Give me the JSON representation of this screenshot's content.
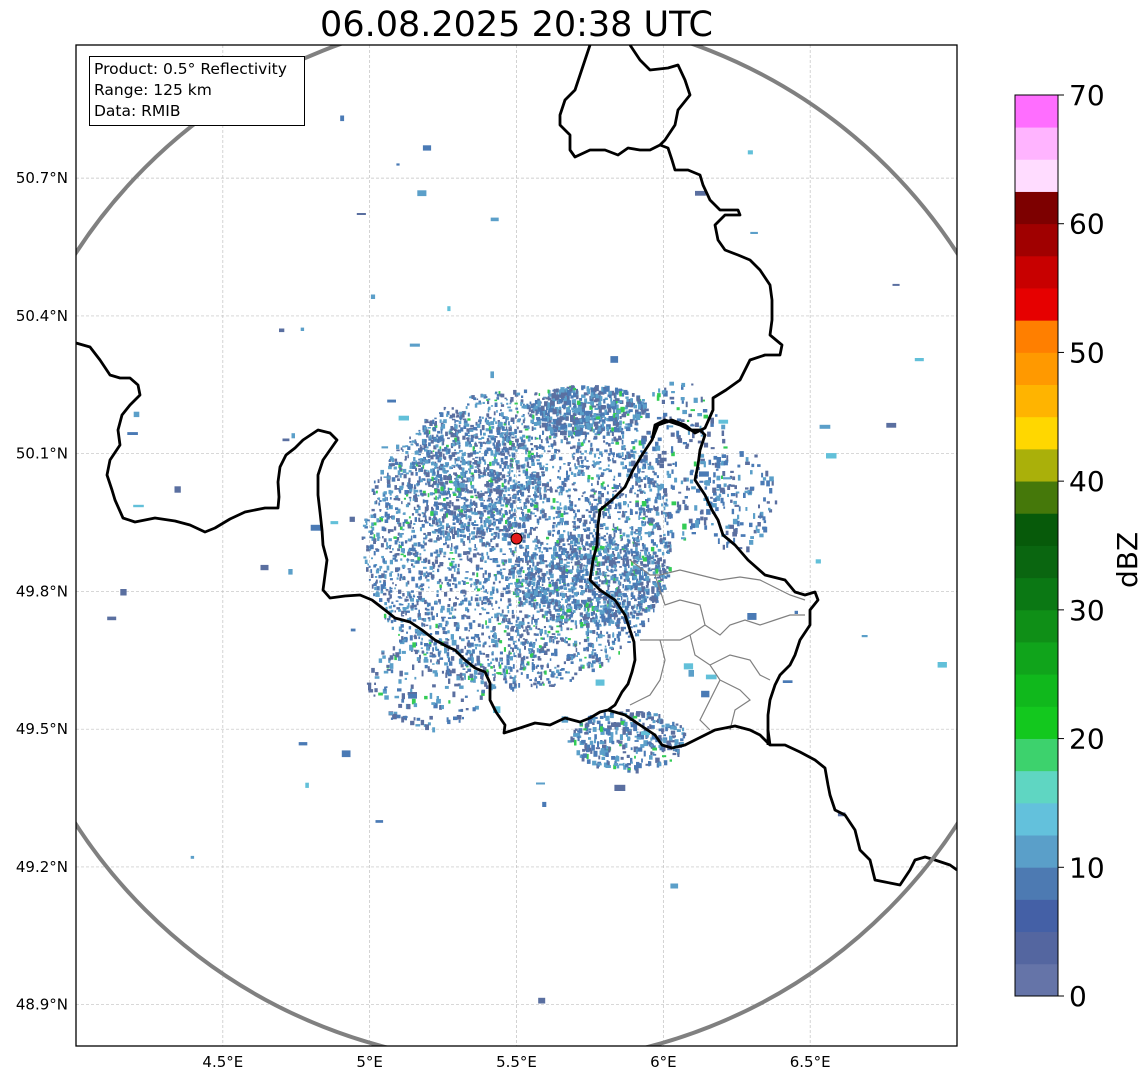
{
  "title": "06.08.2025 20:38 UTC",
  "info_box": {
    "product": "Product: 0.5° Reflectivity",
    "range": "Range: 125 km",
    "data": "Data: RMIB"
  },
  "map": {
    "lon_range": [
      4.0,
      7.0
    ],
    "lat_range": [
      48.81,
      50.99
    ],
    "lon_ticks": [
      {
        "value": 4.5,
        "label": "4.5°E"
      },
      {
        "value": 5.0,
        "label": "5°E"
      },
      {
        "value": 5.5,
        "label": "5.5°E"
      },
      {
        "value": 6.0,
        "label": "6°E"
      },
      {
        "value": 6.5,
        "label": "6.5°E"
      }
    ],
    "lat_ticks": [
      {
        "value": 48.9,
        "label": "48.9°N"
      },
      {
        "value": 49.2,
        "label": "49.2°N"
      },
      {
        "value": 49.5,
        "label": "49.5°N"
      },
      {
        "value": 49.8,
        "label": "49.8°N"
      },
      {
        "value": 50.1,
        "label": "50.1°N"
      },
      {
        "value": 50.4,
        "label": "50.4°N"
      },
      {
        "value": 50.7,
        "label": "50.7°N"
      }
    ],
    "grid": true,
    "radar_site": {
      "lon": 5.5,
      "lat": 49.915,
      "color": "#e31a1c"
    },
    "range_km": 125,
    "range_ring_color": "#808080",
    "border_color": "#000000",
    "admin_border_color": "#808080",
    "echo_colors": [
      "#5a6fa0",
      "#4a7ab5",
      "#5b9fc9",
      "#62c0d9",
      "#33cc55"
    ]
  },
  "colorbar": {
    "unit": "dBZ",
    "min": 0,
    "max": 70,
    "step": 2.5,
    "ticks": [
      0,
      10,
      20,
      30,
      40,
      50,
      60,
      70
    ],
    "colors": [
      "#6574a8",
      "#5466a0",
      "#4460a6",
      "#4d7ab2",
      "#5a9fc9",
      "#63c1dc",
      "#5fd6c2",
      "#3dd26d",
      "#13c81e",
      "#10b81c",
      "#10a41b",
      "#0f8f17",
      "#0b7814",
      "#0a6610",
      "#075a0a",
      "#45780a",
      "#aab00a",
      "#ffd700",
      "#ffb400",
      "#ff9900",
      "#ff7f00",
      "#e60000",
      "#c80000",
      "#a00000",
      "#7d0000",
      "#ffdcff",
      "#ffb4ff",
      "#ff6eff",
      "#eb32eb"
    ]
  }
}
